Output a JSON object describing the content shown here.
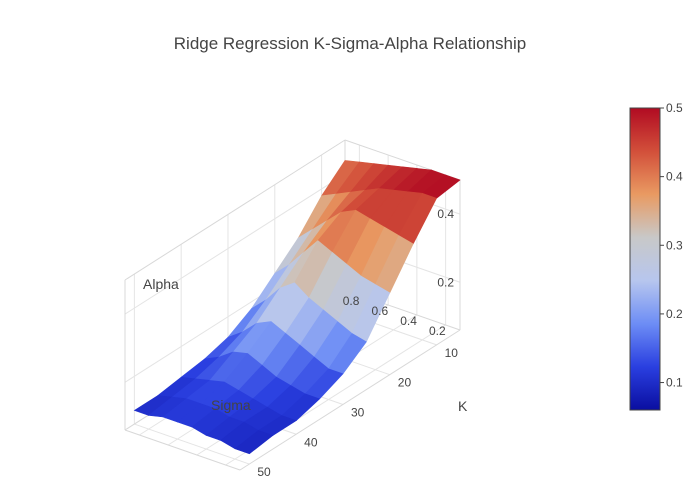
{
  "chart_data": {
    "type": "surface",
    "title": "Ridge Regression K-Sigma-Alpha Relationship",
    "axes": {
      "x": {
        "label": "K",
        "ticks": [
          10,
          20,
          30,
          40,
          50
        ],
        "range": [
          5,
          52
        ]
      },
      "y": {
        "label": "Sigma",
        "ticks": [
          0.2,
          0.4,
          0.6,
          0.8
        ],
        "range": [
          0.1,
          0.9
        ]
      },
      "z": {
        "label": "Alpha",
        "ticks": [
          0.2,
          0.4
        ],
        "range": [
          0.06,
          0.5
        ]
      }
    },
    "colorscale": {
      "name": "coolwarm",
      "stops": [
        "#0a0ea0",
        "#2a3fe0",
        "#6d8df5",
        "#b7c6ee",
        "#c8c8c8",
        "#e99a62",
        "#d24f3a",
        "#b10b22"
      ],
      "range": [
        0.06,
        0.5
      ],
      "ticks": [
        0.1,
        0.2,
        0.3,
        0.4,
        0.5
      ]
    },
    "surface": {
      "k": [
        5,
        10,
        15,
        20,
        25,
        30,
        35,
        40,
        45,
        50
      ],
      "sigma": [
        0.1,
        0.2,
        0.3,
        0.4,
        0.5,
        0.6,
        0.7,
        0.8,
        0.9
      ],
      "alpha": [
        [
          0.5,
          0.49,
          0.4,
          0.3,
          0.2,
          0.15,
          0.12,
          0.1,
          0.1,
          0.09
        ],
        [
          0.5,
          0.49,
          0.41,
          0.31,
          0.21,
          0.15,
          0.12,
          0.1,
          0.1,
          0.09
        ],
        [
          0.5,
          0.48,
          0.42,
          0.32,
          0.23,
          0.17,
          0.13,
          0.11,
          0.11,
          0.1
        ],
        [
          0.49,
          0.47,
          0.43,
          0.34,
          0.25,
          0.19,
          0.14,
          0.12,
          0.11,
          0.1
        ],
        [
          0.48,
          0.46,
          0.44,
          0.36,
          0.27,
          0.21,
          0.16,
          0.13,
          0.12,
          0.11
        ],
        [
          0.47,
          0.44,
          0.42,
          0.38,
          0.3,
          0.23,
          0.18,
          0.14,
          0.12,
          0.11
        ],
        [
          0.46,
          0.42,
          0.38,
          0.33,
          0.27,
          0.21,
          0.17,
          0.13,
          0.12,
          0.11
        ],
        [
          0.45,
          0.4,
          0.34,
          0.28,
          0.22,
          0.17,
          0.14,
          0.12,
          0.11,
          0.1
        ],
        [
          0.44,
          0.38,
          0.3,
          0.24,
          0.18,
          0.14,
          0.12,
          0.11,
          0.1,
          0.1
        ]
      ]
    }
  }
}
